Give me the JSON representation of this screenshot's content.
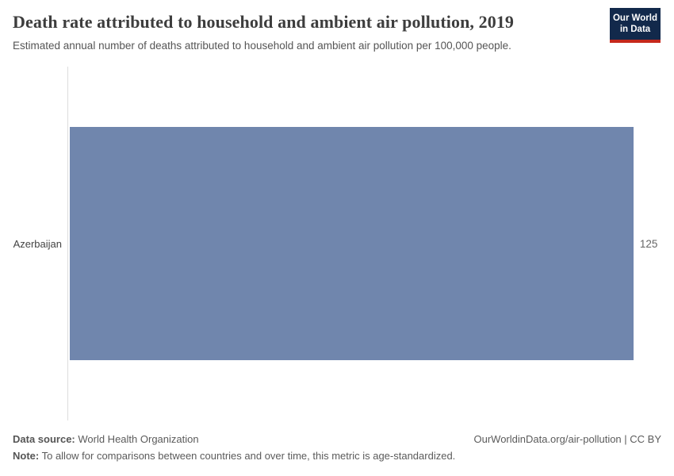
{
  "header": {
    "title": "Death rate attributed to household and ambient air pollution, 2019",
    "subtitle": "Estimated annual number of deaths attributed to household and ambient air pollution per 100,000 people.",
    "logo_line1": "Our World",
    "logo_line2": "in Data"
  },
  "chart_data": {
    "type": "bar",
    "orientation": "horizontal",
    "categories": [
      "Azerbaijan"
    ],
    "values": [
      125
    ],
    "value_labels": [
      "125"
    ],
    "title": "Death rate attributed to household and ambient air pollution, 2019",
    "xlabel": "",
    "ylabel": "",
    "xlim": [
      0,
      131
    ],
    "grid": false,
    "legend": false,
    "bar_color": "#7086ad",
    "axis_line_color": "#dddddd"
  },
  "footer": {
    "source_label": "Data source:",
    "source_value": " World Health Organization",
    "note_label": "Note:",
    "note_value": " To allow for comparisons between countries and over time, this metric is age-standardized.",
    "link": "OurWorldinData.org/air-pollution | CC BY"
  },
  "colors": {
    "bar": "#7086ad",
    "logo_bg": "#12294b",
    "logo_stripe": "#c5281c",
    "title_text": "#3d3d3d",
    "subtitle_text": "#555555"
  }
}
